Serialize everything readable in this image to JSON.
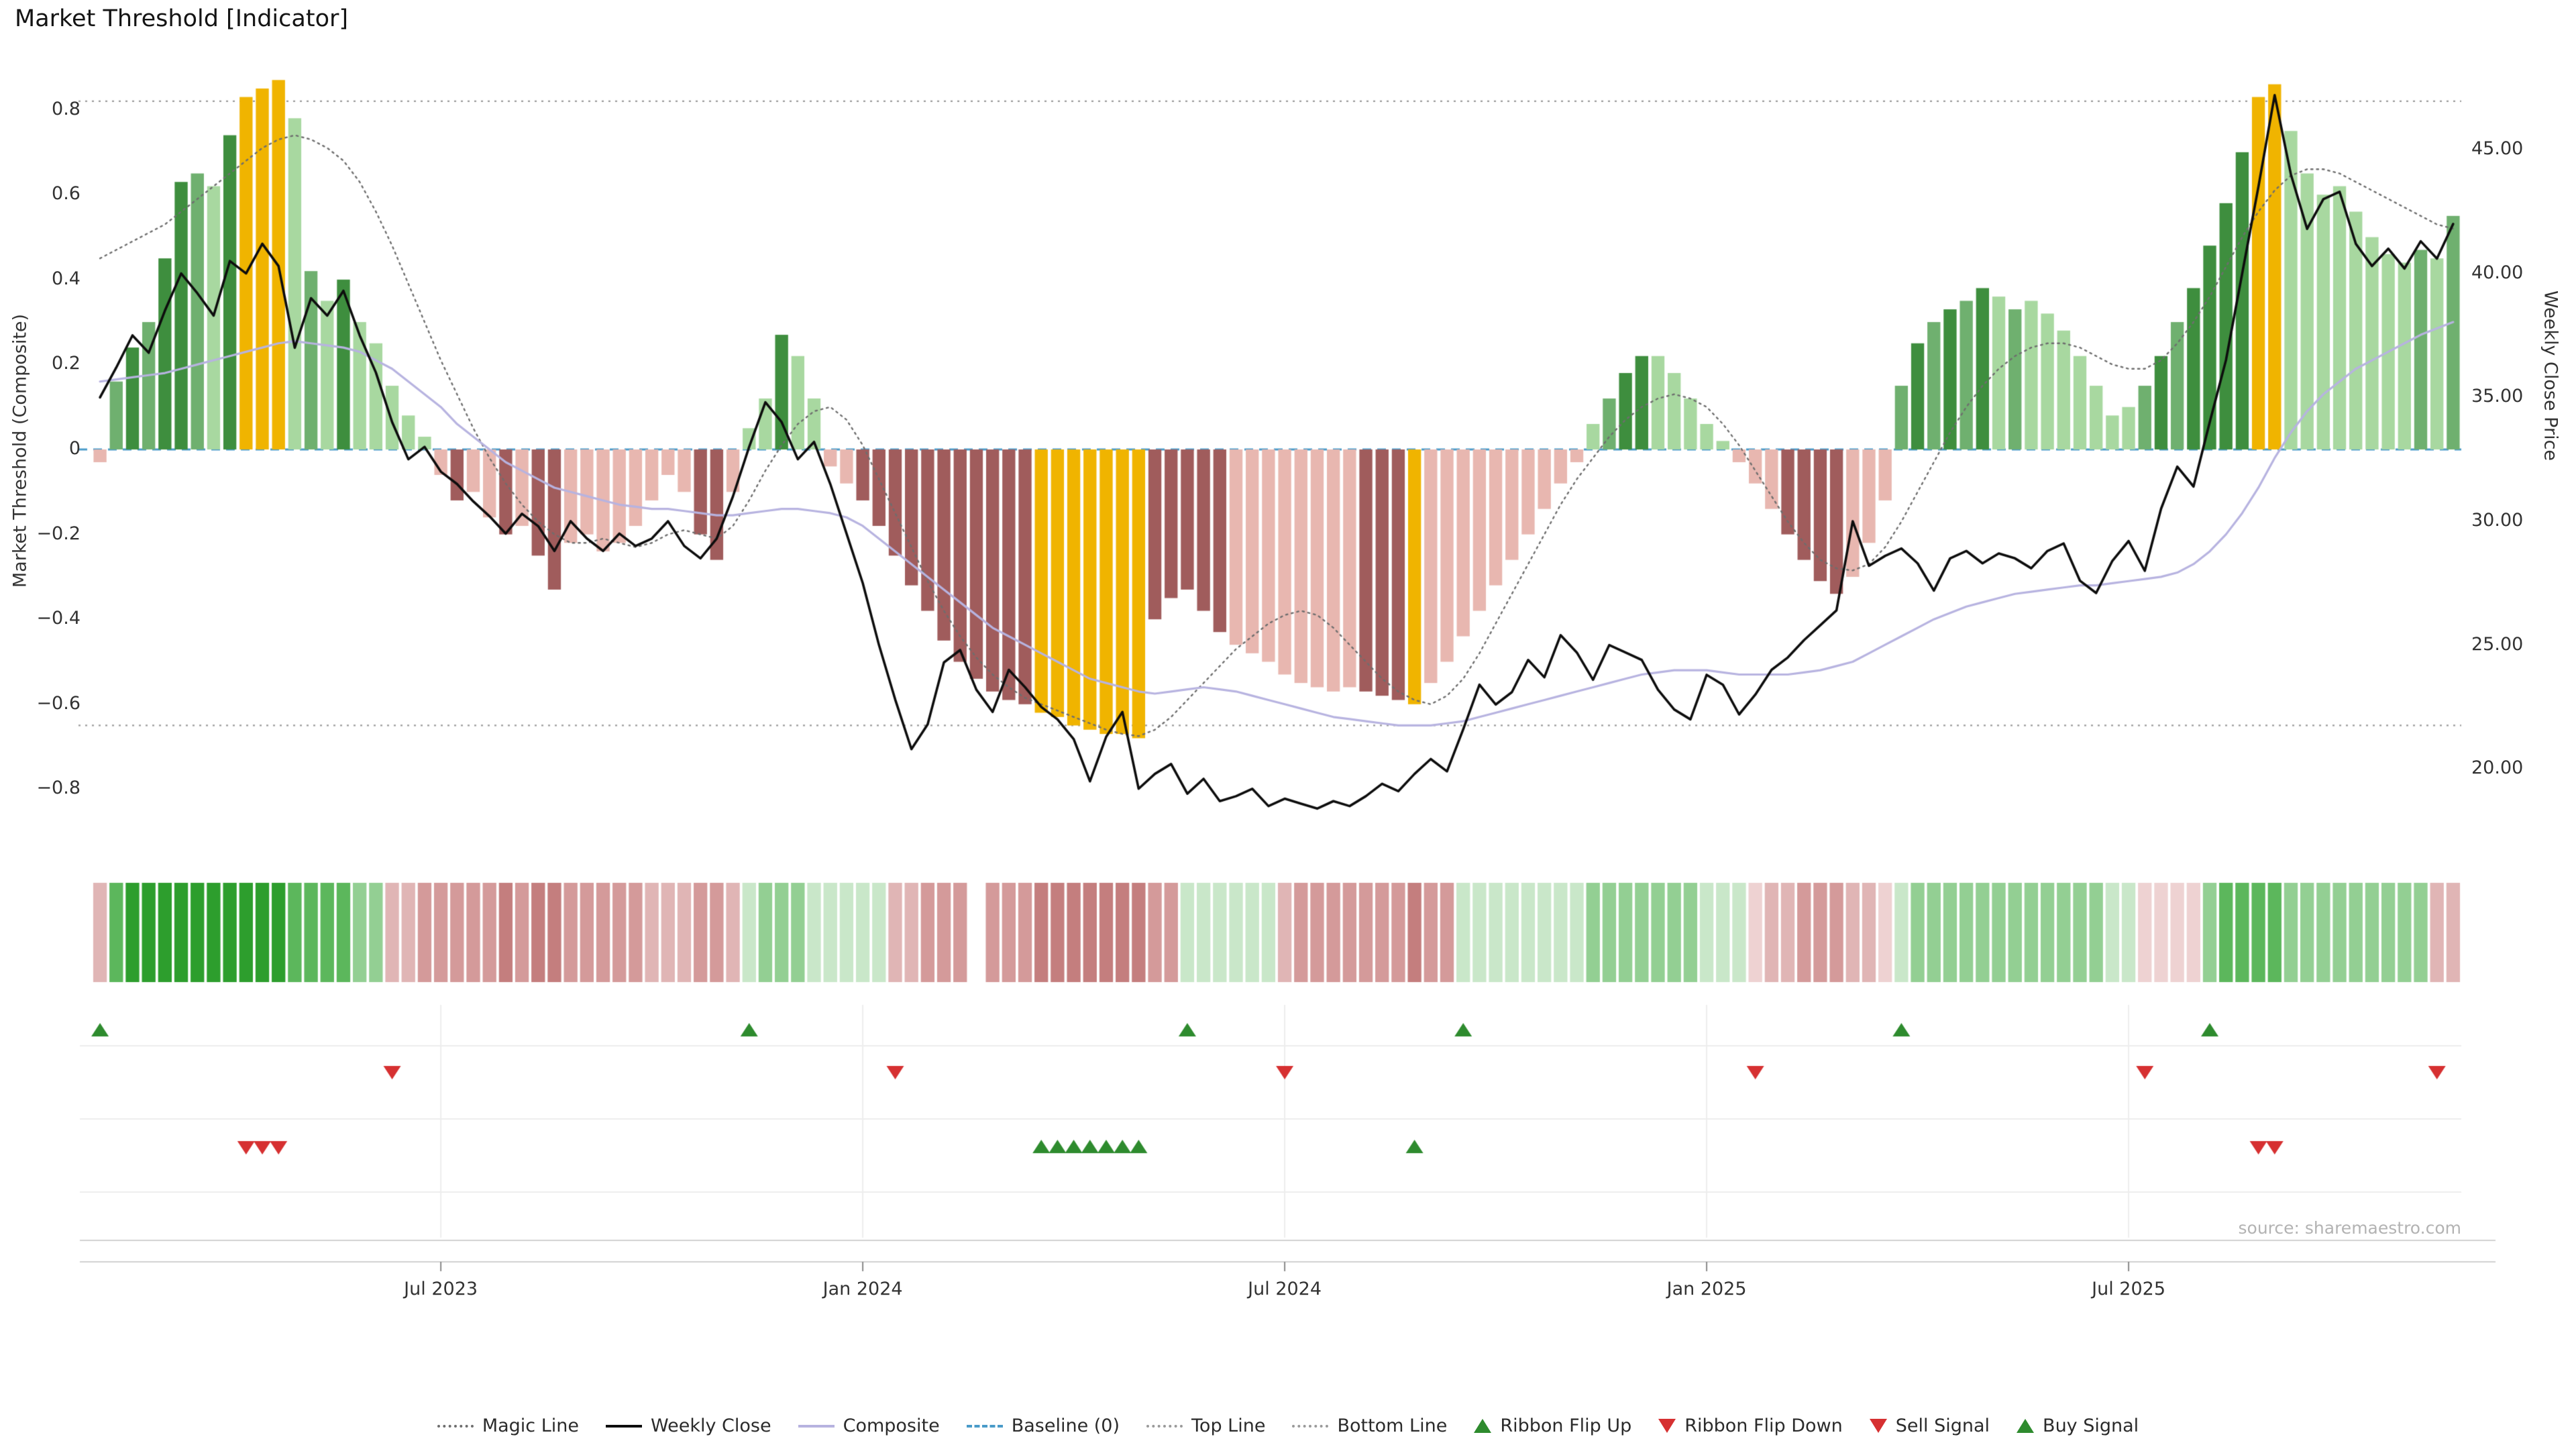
{
  "title": "Market Threshold [Indicator]",
  "source": "source: sharemaestro.com",
  "legend": [
    {
      "label": "Magic Line",
      "type": "dotted",
      "color": "#6e6e6e"
    },
    {
      "label": "Weekly Close",
      "type": "solid",
      "color": "#0d0d0d"
    },
    {
      "label": "Composite",
      "type": "solid",
      "color": "#b7b3e0"
    },
    {
      "label": "Baseline (0)",
      "type": "dashed",
      "color": "#4a9bc9"
    },
    {
      "label": "Top Line",
      "type": "dotted",
      "color": "#9a9a9a"
    },
    {
      "label": "Bottom Line",
      "type": "dotted",
      "color": "#9a9a9a"
    },
    {
      "label": "Ribbon Flip Up",
      "type": "tri-up",
      "color": "#2e8b2e"
    },
    {
      "label": "Ribbon Flip Down",
      "type": "tri-down",
      "color": "#d63031"
    },
    {
      "label": "Sell Signal",
      "type": "tri-down",
      "color": "#d63031"
    },
    {
      "label": "Buy Signal",
      "type": "tri-up",
      "color": "#2e8b2e"
    }
  ],
  "chart_data": {
    "type": "bar+line",
    "n_weeks": 146,
    "x_ticks": [
      {
        "week": 21,
        "label": "Jul 2023"
      },
      {
        "week": 47,
        "label": "Jan 2024"
      },
      {
        "week": 73,
        "label": "Jul 2024"
      },
      {
        "week": 99,
        "label": "Jan 2025"
      },
      {
        "week": 125,
        "label": "Jul 2025"
      }
    ],
    "left_axis": {
      "title": "Market Threshold (Composite)",
      "tick_values": [
        0.8,
        0.6,
        0.4,
        0.2,
        0,
        -0.2,
        -0.4,
        -0.6,
        -0.8
      ],
      "tick_labels": [
        "0.8",
        "0.6",
        "0.4",
        "0.2",
        "0",
        "−0.2",
        "−0.4",
        "−0.6",
        "−0.8"
      ],
      "range": [
        -0.94,
        0.9
      ]
    },
    "right_axis": {
      "title": "Weekly Close Price",
      "tick_values": [
        45,
        40,
        35,
        30,
        25,
        20
      ],
      "tick_labels": [
        "45.00",
        "40.00",
        "35.00",
        "30.00",
        "25.00",
        "20.00"
      ],
      "range": [
        17.5,
        48.3
      ]
    },
    "top_line": 0.82,
    "bottom_line": -0.65,
    "baseline": 0,
    "palette": {
      "dg": "#3e8e3e",
      "g": "#6fb06f",
      "lg": "#a8d8a0",
      "au": "#f0b400",
      "dr": "#a05c5c",
      "pk": "#e8b7b0"
    },
    "ribbon_palette": {
      "g3": "#2d9e2d",
      "g2": "#5cb75c",
      "g1": "#93cf93",
      "g0": "#c9e7c9",
      "r3": "#c47e7e",
      "r2": "#d49a9a",
      "r1": "#e0b5b5",
      "r0": "#eed2d2",
      "w": "#ffffff"
    },
    "signal_colors": {
      "up": "#2e8b2e",
      "down": "#d63031"
    },
    "series": {
      "threshold": [
        -0.03,
        0.16,
        0.24,
        0.3,
        0.45,
        0.63,
        0.65,
        0.62,
        0.74,
        0.83,
        0.85,
        0.87,
        0.78,
        0.42,
        0.35,
        0.4,
        0.3,
        0.25,
        0.15,
        0.08,
        0.03,
        -0.06,
        -0.12,
        -0.1,
        -0.16,
        -0.2,
        -0.18,
        -0.25,
        -0.33,
        -0.22,
        -0.2,
        -0.24,
        -0.22,
        -0.18,
        -0.12,
        -0.06,
        -0.1,
        -0.2,
        -0.26,
        -0.1,
        0.05,
        0.12,
        0.27,
        0.22,
        0.12,
        -0.04,
        -0.08,
        -0.12,
        -0.18,
        -0.25,
        -0.32,
        -0.38,
        -0.45,
        -0.5,
        -0.54,
        -0.57,
        -0.59,
        -0.6,
        -0.62,
        -0.63,
        -0.65,
        -0.66,
        -0.67,
        -0.67,
        -0.68,
        -0.4,
        -0.35,
        -0.33,
        -0.38,
        -0.43,
        -0.46,
        -0.48,
        -0.5,
        -0.53,
        -0.55,
        -0.56,
        -0.57,
        -0.56,
        -0.57,
        -0.58,
        -0.59,
        -0.6,
        -0.55,
        -0.5,
        -0.44,
        -0.38,
        -0.32,
        -0.26,
        -0.2,
        -0.14,
        -0.08,
        -0.03,
        0.06,
        0.12,
        0.18,
        0.22,
        0.22,
        0.18,
        0.12,
        0.06,
        0.02,
        -0.03,
        -0.08,
        -0.14,
        -0.2,
        -0.26,
        -0.31,
        -0.34,
        -0.3,
        -0.22,
        -0.12,
        0.15,
        0.25,
        0.3,
        0.33,
        0.35,
        0.38,
        0.36,
        0.33,
        0.35,
        0.32,
        0.28,
        0.22,
        0.15,
        0.08,
        0.1,
        0.15,
        0.22,
        0.3,
        0.38,
        0.48,
        0.58,
        0.7,
        0.83,
        0.86,
        0.75,
        0.65,
        0.6,
        0.62,
        0.56,
        0.5,
        0.46,
        0.44,
        0.47,
        0.45,
        0.55
      ],
      "bar_colors": [
        "pk",
        "g",
        "dg",
        "g",
        "dg",
        "dg",
        "g",
        "lg",
        "dg",
        "au",
        "au",
        "au",
        "lg",
        "g",
        "lg",
        "dg",
        "lg",
        "lg",
        "lg",
        "lg",
        "lg",
        "pk",
        "dr",
        "pk",
        "pk",
        "dr",
        "pk",
        "dr",
        "dr",
        "pk",
        "pk",
        "pk",
        "pk",
        "pk",
        "pk",
        "pk",
        "pk",
        "dr",
        "dr",
        "pk",
        "lg",
        "lg",
        "dg",
        "lg",
        "lg",
        "pk",
        "pk",
        "dr",
        "dr",
        "dr",
        "dr",
        "dr",
        "dr",
        "dr",
        "dr",
        "dr",
        "dr",
        "dr",
        "au",
        "au",
        "au",
        "au",
        "au",
        "au",
        "au",
        "dr",
        "dr",
        "dr",
        "dr",
        "dr",
        "pk",
        "pk",
        "pk",
        "pk",
        "pk",
        "pk",
        "pk",
        "pk",
        "dr",
        "dr",
        "dr",
        "au",
        "pk",
        "pk",
        "pk",
        "pk",
        "pk",
        "pk",
        "pk",
        "pk",
        "pk",
        "pk",
        "lg",
        "g",
        "dg",
        "dg",
        "lg",
        "lg",
        "lg",
        "lg",
        "lg",
        "pk",
        "pk",
        "pk",
        "dr",
        "dr",
        "dr",
        "dr",
        "pk",
        "pk",
        "pk",
        "g",
        "dg",
        "g",
        "dg",
        "g",
        "dg",
        "lg",
        "g",
        "lg",
        "lg",
        "lg",
        "lg",
        "lg",
        "lg",
        "lg",
        "g",
        "dg",
        "g",
        "dg",
        "dg",
        "dg",
        "dg",
        "au",
        "au",
        "lg",
        "lg",
        "lg",
        "lg",
        "lg",
        "lg",
        "lg",
        "lg",
        "g",
        "lg",
        "g"
      ],
      "weekly_close": [
        35.0,
        36.2,
        37.5,
        36.8,
        38.5,
        40.0,
        39.2,
        38.3,
        40.5,
        40.0,
        41.2,
        40.3,
        37.0,
        39.0,
        38.3,
        39.3,
        37.5,
        36.0,
        34.0,
        32.5,
        33.0,
        32.0,
        31.5,
        30.8,
        30.2,
        29.5,
        30.3,
        29.8,
        28.8,
        30.0,
        29.3,
        28.8,
        29.5,
        29.0,
        29.3,
        30.0,
        29.0,
        28.5,
        29.3,
        31.0,
        33.0,
        34.8,
        34.0,
        32.5,
        33.2,
        31.5,
        29.5,
        27.5,
        25.0,
        22.8,
        20.8,
        21.8,
        24.3,
        24.8,
        23.2,
        22.3,
        24.0,
        23.3,
        22.5,
        22.0,
        21.2,
        19.5,
        21.3,
        22.3,
        19.2,
        19.8,
        20.2,
        19.0,
        19.6,
        18.7,
        18.9,
        19.2,
        18.5,
        18.8,
        18.6,
        18.4,
        18.7,
        18.5,
        18.9,
        19.4,
        19.1,
        19.8,
        20.4,
        19.9,
        21.6,
        23.4,
        22.6,
        23.1,
        24.4,
        23.7,
        25.4,
        24.7,
        23.6,
        25.0,
        24.7,
        24.4,
        23.2,
        22.4,
        22.0,
        23.8,
        23.4,
        22.2,
        23.0,
        24.0,
        24.5,
        25.2,
        25.8,
        26.4,
        30.0,
        28.2,
        28.6,
        28.9,
        28.3,
        27.2,
        28.5,
        28.8,
        28.3,
        28.7,
        28.5,
        28.1,
        28.8,
        29.1,
        27.6,
        27.1,
        28.4,
        29.2,
        28.0,
        30.5,
        32.2,
        31.4,
        34.0,
        36.5,
        40.0,
        43.5,
        47.2,
        44.0,
        41.8,
        43.0,
        43.3,
        41.2,
        40.3,
        41.0,
        40.2,
        41.3,
        40.6,
        42.0
      ],
      "composite": [
        0.16,
        0.165,
        0.17,
        0.175,
        0.18,
        0.19,
        0.2,
        0.21,
        0.22,
        0.23,
        0.24,
        0.25,
        0.255,
        0.25,
        0.245,
        0.24,
        0.23,
        0.21,
        0.19,
        0.16,
        0.13,
        0.1,
        0.06,
        0.03,
        0.0,
        -0.03,
        -0.05,
        -0.07,
        -0.09,
        -0.1,
        -0.11,
        -0.12,
        -0.13,
        -0.135,
        -0.14,
        -0.14,
        -0.145,
        -0.15,
        -0.155,
        -0.155,
        -0.15,
        -0.145,
        -0.14,
        -0.14,
        -0.145,
        -0.15,
        -0.16,
        -0.18,
        -0.21,
        -0.24,
        -0.27,
        -0.3,
        -0.33,
        -0.36,
        -0.39,
        -0.42,
        -0.44,
        -0.46,
        -0.48,
        -0.5,
        -0.52,
        -0.54,
        -0.55,
        -0.56,
        -0.57,
        -0.575,
        -0.57,
        -0.565,
        -0.56,
        -0.565,
        -0.57,
        -0.58,
        -0.59,
        -0.6,
        -0.61,
        -0.62,
        -0.63,
        -0.635,
        -0.64,
        -0.645,
        -0.65,
        -0.65,
        -0.65,
        -0.645,
        -0.64,
        -0.63,
        -0.62,
        -0.61,
        -0.6,
        -0.59,
        -0.58,
        -0.57,
        -0.56,
        -0.55,
        -0.54,
        -0.53,
        -0.525,
        -0.52,
        -0.52,
        -0.52,
        -0.525,
        -0.53,
        -0.53,
        -0.53,
        -0.53,
        -0.525,
        -0.52,
        -0.51,
        -0.5,
        -0.48,
        -0.46,
        -0.44,
        -0.42,
        -0.4,
        -0.385,
        -0.37,
        -0.36,
        -0.35,
        -0.34,
        -0.335,
        -0.33,
        -0.325,
        -0.32,
        -0.32,
        -0.315,
        -0.31,
        -0.305,
        -0.3,
        -0.29,
        -0.27,
        -0.24,
        -0.2,
        -0.15,
        -0.09,
        -0.02,
        0.04,
        0.09,
        0.13,
        0.16,
        0.19,
        0.21,
        0.23,
        0.25,
        0.27,
        0.285,
        0.3
      ],
      "magic_line": [
        0.45,
        0.47,
        0.49,
        0.51,
        0.53,
        0.56,
        0.59,
        0.62,
        0.65,
        0.68,
        0.71,
        0.73,
        0.74,
        0.73,
        0.71,
        0.68,
        0.63,
        0.56,
        0.48,
        0.39,
        0.3,
        0.21,
        0.13,
        0.05,
        -0.02,
        -0.08,
        -0.13,
        -0.17,
        -0.2,
        -0.22,
        -0.22,
        -0.21,
        -0.22,
        -0.23,
        -0.22,
        -0.2,
        -0.19,
        -0.2,
        -0.21,
        -0.18,
        -0.12,
        -0.05,
        0.01,
        0.06,
        0.09,
        0.1,
        0.07,
        0.01,
        -0.07,
        -0.15,
        -0.23,
        -0.31,
        -0.38,
        -0.44,
        -0.49,
        -0.53,
        -0.56,
        -0.585,
        -0.6,
        -0.615,
        -0.63,
        -0.645,
        -0.66,
        -0.67,
        -0.675,
        -0.66,
        -0.63,
        -0.59,
        -0.55,
        -0.51,
        -0.47,
        -0.44,
        -0.41,
        -0.39,
        -0.38,
        -0.39,
        -0.42,
        -0.46,
        -0.5,
        -0.54,
        -0.57,
        -0.59,
        -0.6,
        -0.58,
        -0.54,
        -0.48,
        -0.41,
        -0.34,
        -0.27,
        -0.2,
        -0.13,
        -0.07,
        -0.02,
        0.03,
        0.07,
        0.1,
        0.12,
        0.13,
        0.12,
        0.1,
        0.06,
        0.01,
        -0.05,
        -0.11,
        -0.17,
        -0.22,
        -0.26,
        -0.28,
        -0.285,
        -0.27,
        -0.23,
        -0.17,
        -0.1,
        -0.03,
        0.04,
        0.1,
        0.15,
        0.19,
        0.22,
        0.24,
        0.25,
        0.25,
        0.24,
        0.22,
        0.2,
        0.19,
        0.19,
        0.21,
        0.25,
        0.3,
        0.36,
        0.43,
        0.5,
        0.56,
        0.61,
        0.645,
        0.66,
        0.66,
        0.65,
        0.63,
        0.61,
        0.59,
        0.57,
        0.55,
        0.53,
        0.52
      ]
    },
    "ribbon": [
      "r1",
      "g2",
      "g3",
      "g3",
      "g3",
      "g3",
      "g3",
      "g3",
      "g3",
      "g3",
      "g3",
      "g3",
      "g2",
      "g2",
      "g2",
      "g2",
      "g1",
      "g1",
      "r1",
      "r1",
      "r2",
      "r2",
      "r2",
      "r2",
      "r2",
      "r3",
      "r2",
      "r3",
      "r3",
      "r2",
      "r2",
      "r2",
      "r2",
      "r2",
      "r1",
      "r1",
      "r1",
      "r2",
      "r2",
      "r1",
      "g0",
      "g1",
      "g1",
      "g1",
      "g0",
      "g0",
      "g0",
      "g0",
      "g0",
      "r1",
      "r1",
      "r2",
      "r2",
      "r2",
      "w",
      "r2",
      "r2",
      "r2",
      "r3",
      "r3",
      "r3",
      "r3",
      "r3",
      "r3",
      "r3",
      "r2",
      "r2",
      "g0",
      "g0",
      "g0",
      "g0",
      "g0",
      "g0",
      "r1",
      "r2",
      "r2",
      "r2",
      "r2",
      "r2",
      "r2",
      "r2",
      "r3",
      "r2",
      "r2",
      "g0",
      "g0",
      "g0",
      "g0",
      "g0",
      "g0",
      "g0",
      "g0",
      "g1",
      "g1",
      "g1",
      "g1",
      "g1",
      "g1",
      "g1",
      "g0",
      "g0",
      "g0",
      "r0",
      "r1",
      "r1",
      "r2",
      "r2",
      "r2",
      "r1",
      "r1",
      "r0",
      "g0",
      "g1",
      "g1",
      "g1",
      "g1",
      "g1",
      "g1",
      "g1",
      "g1",
      "g1",
      "g1",
      "g1",
      "g1",
      "g0",
      "g0",
      "r0",
      "r0",
      "r0",
      "r0",
      "g1",
      "g2",
      "g2",
      "g2",
      "g2",
      "g1",
      "g1",
      "g1",
      "g1",
      "g1",
      "g1",
      "g1",
      "g1",
      "g1",
      "r1",
      "r1"
    ],
    "signals": {
      "ribbon_flip_up": [
        0,
        40,
        67,
        84,
        111,
        130
      ],
      "ribbon_flip_down": [
        18,
        49,
        73,
        102,
        126,
        144
      ],
      "sell": [
        9,
        10,
        11,
        133,
        134
      ],
      "buy": [
        58,
        59,
        60,
        61,
        62,
        63,
        64,
        81
      ]
    }
  }
}
